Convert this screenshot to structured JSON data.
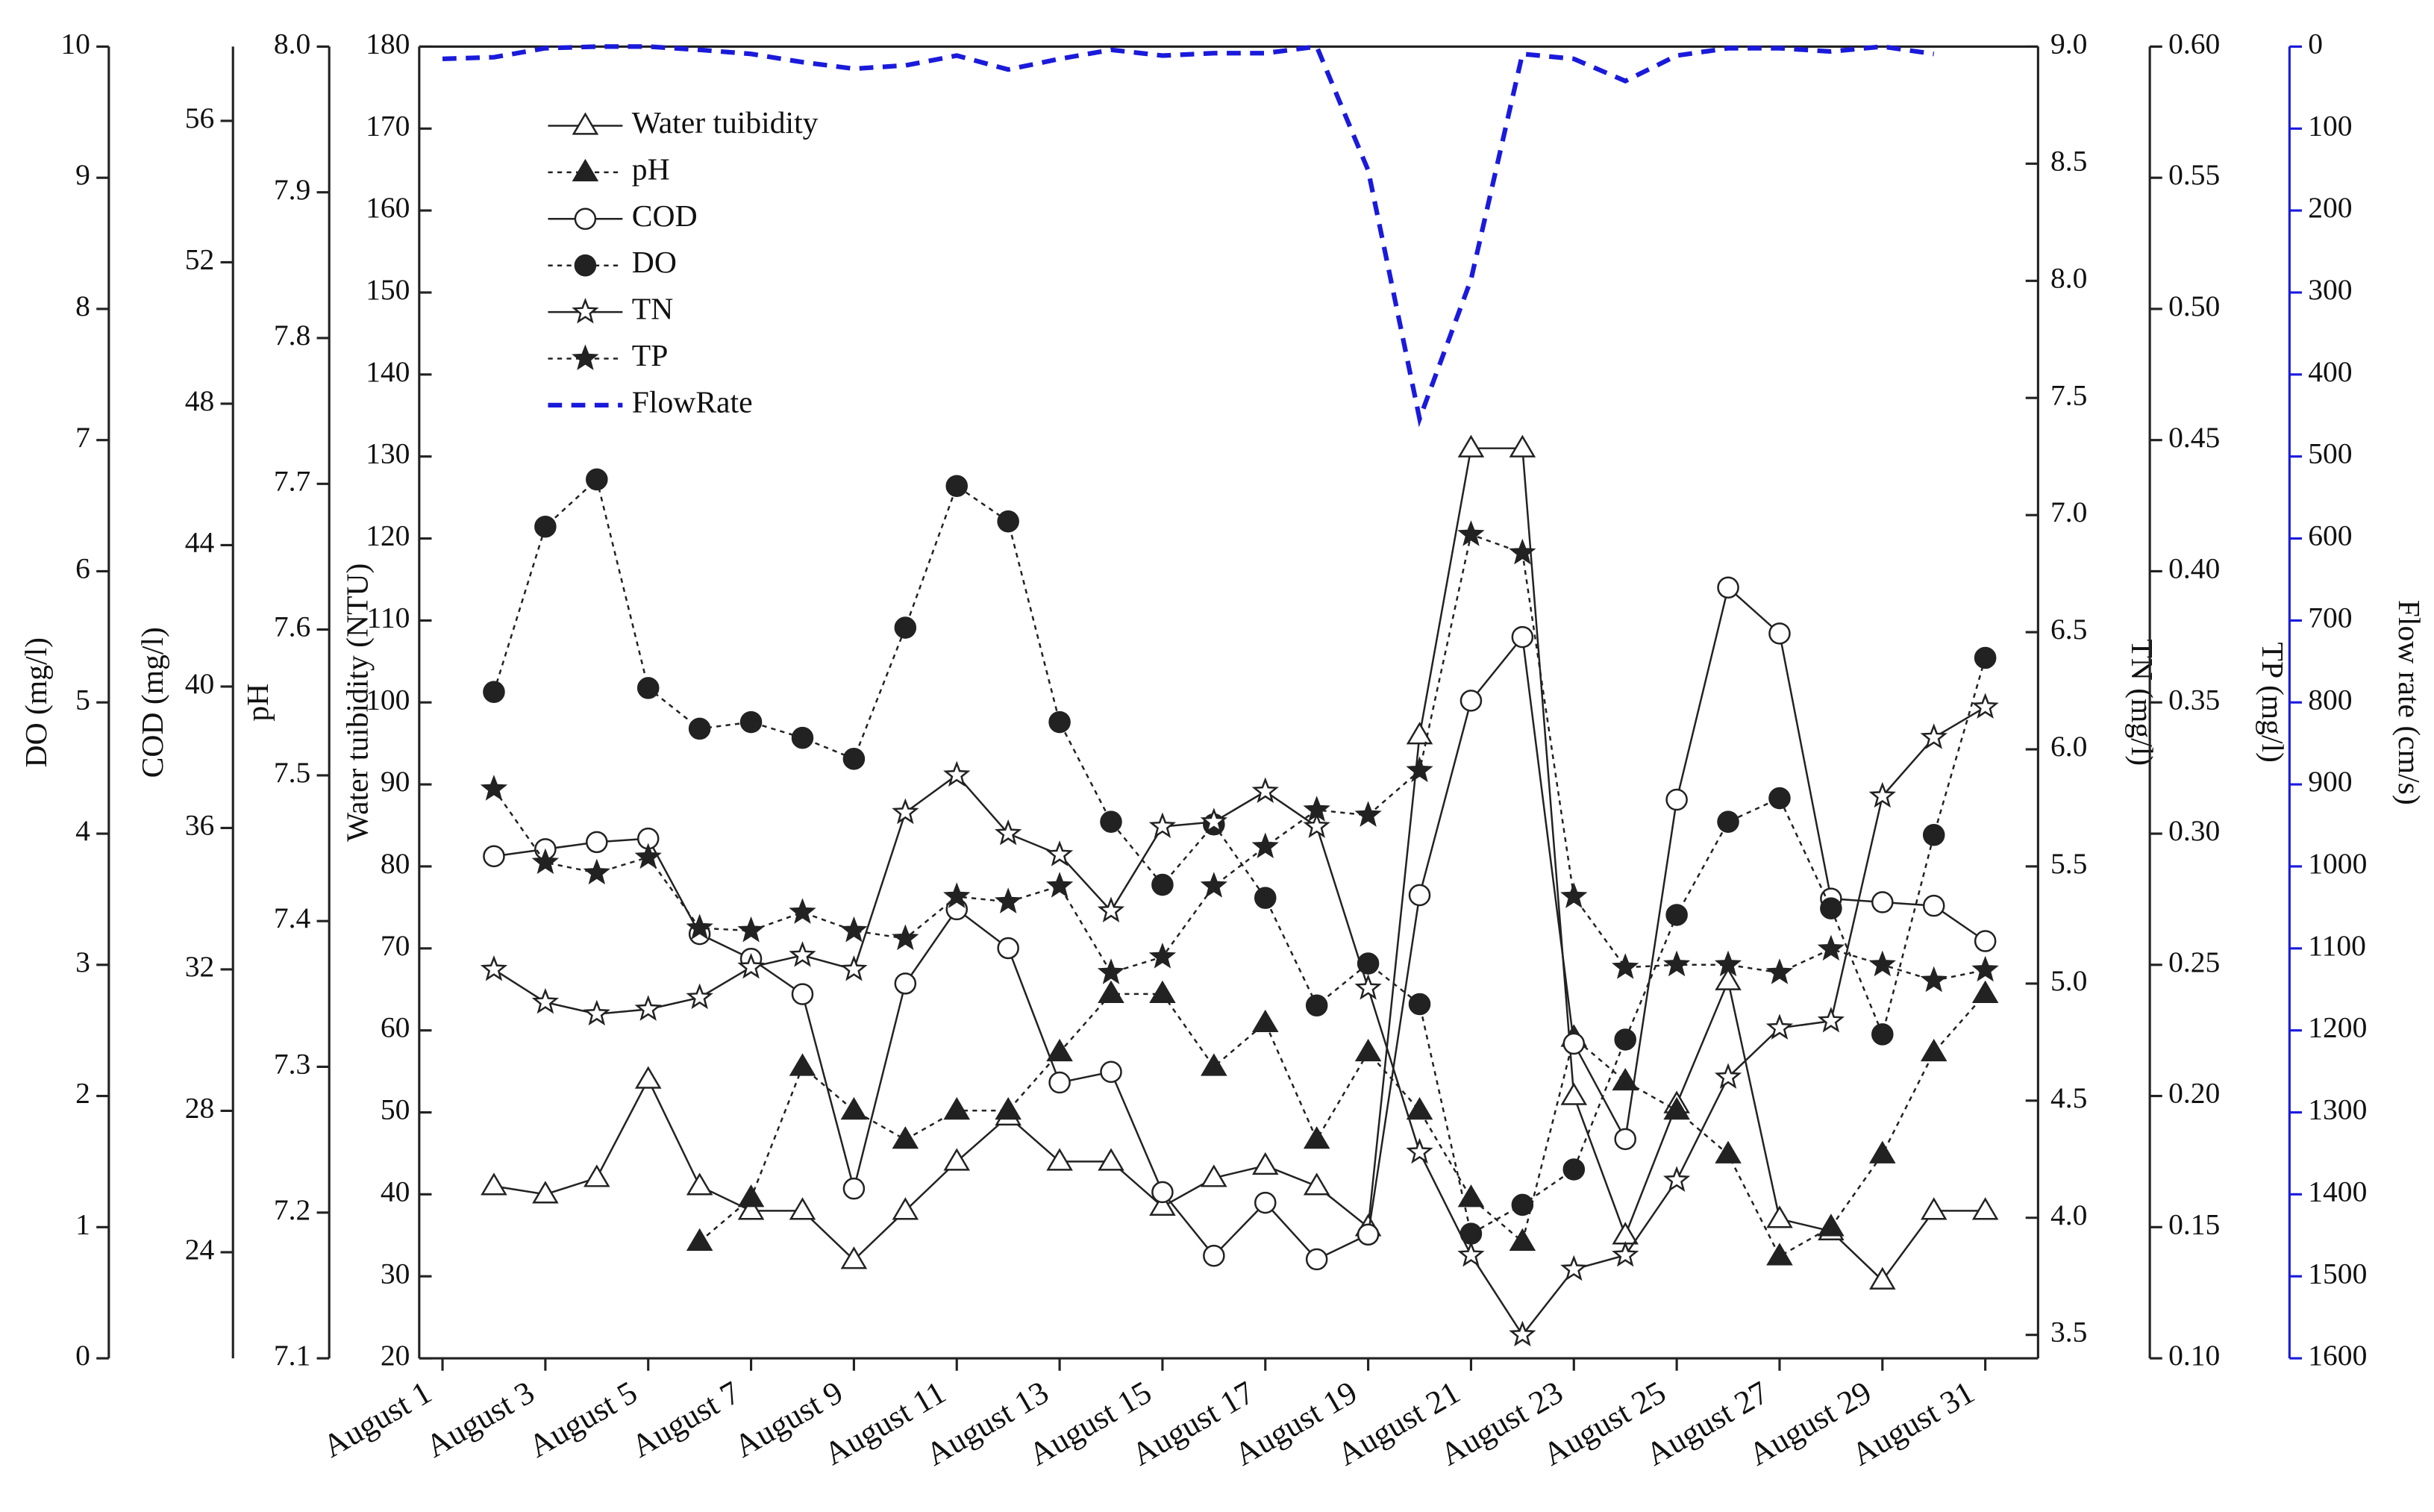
{
  "chart_data": {
    "type": "line",
    "categories": [
      "August 1",
      null,
      "August 3",
      null,
      "August 5",
      null,
      "August 7",
      null,
      "August 9",
      null,
      "August 11",
      null,
      "August 13",
      null,
      "August 15",
      null,
      "August 17",
      null,
      "August 19",
      null,
      "August 21",
      null,
      "August 23",
      null,
      "August 25",
      null,
      "August 27",
      null,
      "August 29",
      null,
      "August 31"
    ],
    "axes": [
      {
        "label": "Water tuibidity (NTU)",
        "lim": [
          20,
          180
        ],
        "ticks": [
          20,
          30,
          40,
          50,
          60,
          70,
          80,
          90,
          100,
          110,
          120,
          130,
          140,
          150,
          160,
          170,
          180
        ]
      },
      {
        "label": "pH",
        "lim": [
          7.1,
          8.0
        ],
        "ticks": [
          7.1,
          7.2,
          7.3,
          7.4,
          7.5,
          7.6,
          7.7,
          7.8,
          7.9,
          {
            "value": 8.0,
            "label": "8.0"
          }
        ]
      },
      {
        "label": "COD (mg/l)",
        "lim": [
          21.0,
          58.1
        ],
        "ticks": [
          24,
          28,
          32,
          36,
          40,
          44,
          48,
          52,
          56
        ]
      },
      {
        "label": "DO (mg/l)",
        "lim": [
          0,
          10
        ],
        "ticks": [
          0,
          1,
          2,
          3,
          4,
          5,
          6,
          7,
          8,
          9,
          10
        ]
      },
      {
        "label": "TN (mg/l)",
        "lim": [
          3.4,
          9.0
        ],
        "ticks": [
          3.5,
          {
            "value": 4.0,
            "label": "4.0"
          },
          4.5,
          {
            "value": 5.0,
            "label": "5.0"
          },
          5.5,
          {
            "value": 6.0,
            "label": "6.0"
          },
          6.5,
          {
            "value": 7.0,
            "label": "7.0"
          },
          7.5,
          {
            "value": 8.0,
            "label": "8.0"
          },
          8.5,
          {
            "value": 9.0,
            "label": "9.0"
          }
        ]
      },
      {
        "label": "TP (mg/l)",
        "lim": [
          0.1,
          0.6
        ],
        "ticks": [
          {
            "value": 0.1,
            "label": "0.10"
          },
          0.15,
          {
            "value": 0.2,
            "label": "0.20"
          },
          0.25,
          {
            "value": 0.3,
            "label": "0.30"
          },
          0.35,
          {
            "value": 0.4,
            "label": "0.40"
          },
          0.45,
          {
            "value": 0.5,
            "label": "0.50"
          },
          0.55,
          {
            "value": 0.6,
            "label": "0.60"
          }
        ]
      },
      {
        "label": "Flow rate (cm/s)",
        "lim": [
          1600,
          0
        ],
        "ticks": [
          0,
          100,
          200,
          300,
          400,
          500,
          600,
          700,
          800,
          900,
          1000,
          1100,
          1200,
          1300,
          1400,
          1500,
          1600
        ],
        "color": "#1a1adc"
      }
    ],
    "series": [
      {
        "name": "Water tuibidity",
        "axis": 0,
        "color": "#222222",
        "marker": "triangle-open",
        "dash": "solid",
        "values": [
          null,
          41,
          40,
          42,
          54,
          41,
          38,
          38,
          32,
          38,
          44,
          49.5,
          44,
          44,
          38.5,
          42,
          43.5,
          41,
          36,
          96,
          131,
          131,
          52,
          35,
          51,
          66,
          37,
          35.5,
          29.5,
          38,
          38
        ]
      },
      {
        "name": "pH",
        "axis": 1,
        "color": "#222222",
        "marker": "triangle-filled",
        "dash": "dot",
        "values": [
          null,
          null,
          null,
          null,
          null,
          7.18,
          7.21,
          7.3,
          7.27,
          7.25,
          7.27,
          7.27,
          7.31,
          7.35,
          7.35,
          7.3,
          7.33,
          7.25,
          7.31,
          7.27,
          7.21,
          7.18,
          7.32,
          7.29,
          7.27,
          7.24,
          7.17,
          7.19,
          7.24,
          7.31,
          7.35
        ]
      },
      {
        "name": "COD",
        "axis": 2,
        "color": "#222222",
        "marker": "circle-open",
        "dash": "solid",
        "values": [
          null,
          35.2,
          35.4,
          35.6,
          35.7,
          33.0,
          32.3,
          31.3,
          25.8,
          31.6,
          33.7,
          32.6,
          28.8,
          29.1,
          25.7,
          23.9,
          25.4,
          23.8,
          24.5,
          34.1,
          39.6,
          41.4,
          29.9,
          27.2,
          36.8,
          42.8,
          41.5,
          34.0,
          33.9,
          33.8,
          32.8
        ]
      },
      {
        "name": "DO",
        "axis": 3,
        "color": "#222222",
        "marker": "circle-filled",
        "dash": "dot",
        "values": [
          null,
          5.08,
          6.34,
          6.7,
          5.11,
          4.8,
          4.85,
          4.73,
          4.57,
          5.57,
          6.65,
          6.38,
          4.85,
          4.09,
          3.61,
          4.07,
          3.51,
          2.69,
          3.01,
          2.7,
          0.95,
          1.17,
          1.44,
          2.43,
          3.38,
          4.09,
          4.27,
          3.43,
          2.47,
          3.99,
          5.34
        ]
      },
      {
        "name": "TN",
        "axis": 4,
        "color": "#222222",
        "marker": "star-open",
        "dash": "solid",
        "values": [
          null,
          5.06,
          4.92,
          4.87,
          4.89,
          4.94,
          5.07,
          5.12,
          5.06,
          5.73,
          5.89,
          5.64,
          5.55,
          5.31,
          5.67,
          5.69,
          5.82,
          5.67,
          4.98,
          4.28,
          3.84,
          3.5,
          3.78,
          3.84,
          4.16,
          4.6,
          4.81,
          4.84,
          5.8,
          6.05,
          6.18
        ]
      },
      {
        "name": "TP",
        "axis": 5,
        "color": "#222222",
        "marker": "star-filled",
        "dash": "dot",
        "values": [
          null,
          0.317,
          0.289,
          0.285,
          0.291,
          0.264,
          0.263,
          0.27,
          0.263,
          0.26,
          0.276,
          0.274,
          0.28,
          0.247,
          0.253,
          0.28,
          0.295,
          0.309,
          0.307,
          0.324,
          0.414,
          0.407,
          0.276,
          0.249,
          0.25,
          0.25,
          0.247,
          0.256,
          0.25,
          0.244,
          0.248
        ]
      },
      {
        "name": "FlowRate",
        "axis": 6,
        "color": "#1a1adc",
        "marker": "none",
        "dash": "dash",
        "values": [
          15,
          13,
          2,
          0,
          0,
          4,
          9,
          19,
          27,
          23,
          11,
          28,
          15,
          4,
          11,
          8,
          8,
          0,
          151,
          454,
          284,
          9,
          15,
          42,
          11,
          2,
          2,
          6,
          0,
          9,
          null
        ]
      }
    ],
    "legend": "upper-left"
  }
}
